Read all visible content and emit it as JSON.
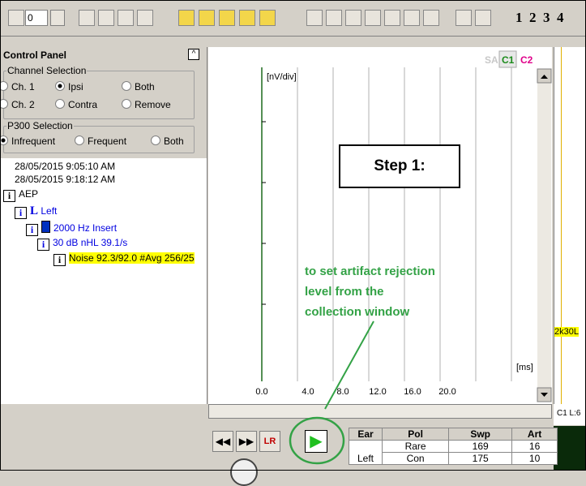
{
  "toolbar": {
    "combo_value": "0",
    "page_numbers": [
      "1",
      "2",
      "3",
      "4"
    ]
  },
  "control_panel": {
    "title": "Control Panel",
    "channel_selection": {
      "label": "Channel Selection",
      "options": [
        "Ch. 1",
        "Ipsi",
        "Both",
        "Ch. 2",
        "Contra",
        "Remove"
      ]
    },
    "p300_selection": {
      "label": "P300 Selection",
      "options": [
        "Infrequent",
        "Frequent",
        "Both"
      ]
    }
  },
  "tree": {
    "items": [
      "28/05/2015 9:05:10 AM",
      "28/05/2015 9:18:12 AM",
      "AEP",
      "Left",
      "2000 Hz Insert",
      "30 dB nHL 39.1/s",
      "Noise 92.3/92.0 #Avg 256/25"
    ]
  },
  "plot": {
    "tabs": [
      "SA",
      "C1",
      "C2"
    ],
    "y_label": "[nV/div]",
    "x_label": "[ms]",
    "x_ticks": [
      "0.0",
      "4.0",
      "8.0",
      "12.0",
      "16.0",
      "20.0"
    ]
  },
  "annotation": {
    "step": "Step 1:",
    "lines": [
      "to set artifact rejection",
      "level from the",
      "collection window"
    ]
  },
  "right_strip": {
    "label": "2k30L",
    "status": "C1 L:6"
  },
  "table": {
    "header": [
      "Ear",
      "Pol",
      "Swp",
      "Art"
    ],
    "rows": [
      [
        "",
        "Rare",
        "169",
        "16"
      ],
      [
        "Left",
        "Con",
        "175",
        "10"
      ]
    ]
  }
}
